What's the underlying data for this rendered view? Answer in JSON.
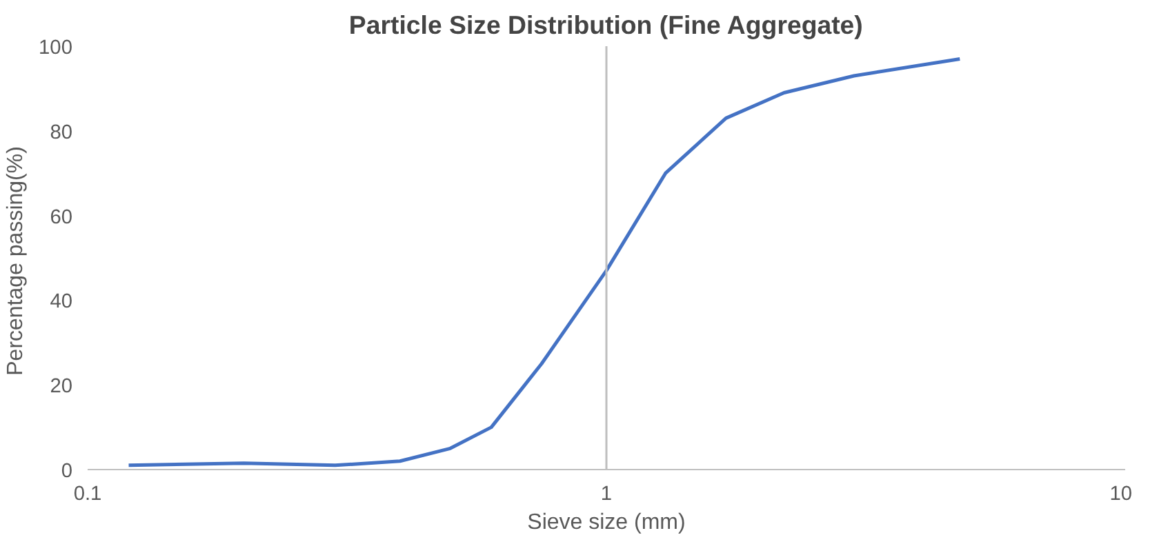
{
  "chart_data": {
    "type": "line",
    "title": "Particle Size Distribution (Fine Aggregate)",
    "xlabel": "Sieve size (mm)",
    "ylabel": "Percentage  passing(%)",
    "x": [
      0.12,
      0.2,
      0.3,
      0.4,
      0.5,
      0.6,
      0.75,
      1.0,
      1.3,
      1.7,
      2.2,
      3,
      4.8
    ],
    "series": [
      {
        "color": "#4472c4",
        "values": [
          1,
          1.5,
          1,
          2,
          5,
          10,
          25,
          47,
          70,
          83,
          89,
          93,
          97
        ]
      }
    ],
    "log": "x",
    "xlim": [
      0.1,
      10
    ],
    "xticks": [
      0.1,
      1,
      10
    ],
    "ylim": [
      0,
      100
    ],
    "yticks": [
      0,
      20,
      40,
      60,
      80,
      100
    ],
    "ref_lines": [
      {
        "axis": "x",
        "value": 1,
        "color": "#bfbfbf"
      }
    ],
    "grid": false,
    "marker": "none",
    "line_style": "solid"
  }
}
